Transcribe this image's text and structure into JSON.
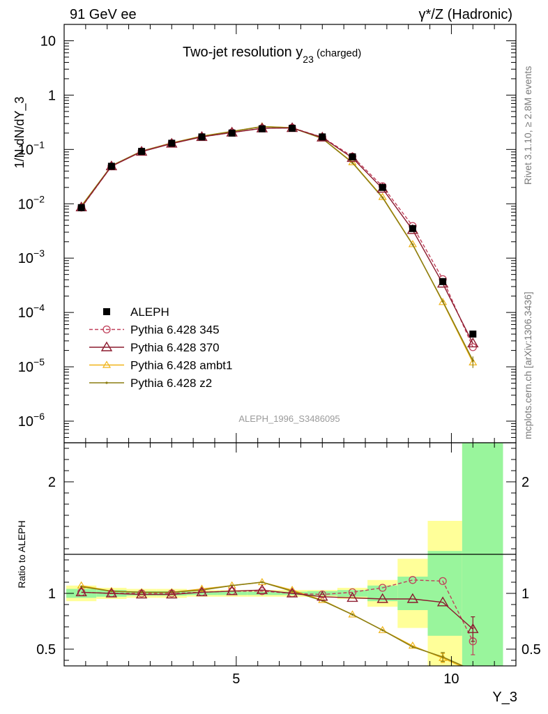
{
  "header": {
    "left": "91 GeV ee",
    "right_prefix": "γ*/Z",
    "right_suffix": " (Hadronic)"
  },
  "side_text": {
    "rivet": "Rivet 3.1.10, ≥ 2.8M events",
    "mcplots": "mcplots.cern.ch [arXiv:1306.3436]"
  },
  "colors": {
    "aleph": "#000000",
    "p345": "#c0405a",
    "p370": "#8b1a2e",
    "ambt1": "#f0b418",
    "z2": "#8c7d10",
    "band_inner": "#99f59c",
    "band_outer": "#ffff99"
  },
  "chart_data": [
    {
      "type": "scatter",
      "title_main": "Two-jet resolution y",
      "title_sub": "23",
      "title_tail": " (charged)",
      "ylabel": "1/N dN/dY_3",
      "yscale": "log",
      "ylim": [
        4e-07,
        20
      ],
      "xlim": [
        1.0,
        11.5
      ],
      "watermark": "ALEPH_1996_S3486095",
      "yticks": [
        {
          "v": 10,
          "label": "10"
        },
        {
          "v": 1,
          "label": "1"
        },
        {
          "v": 0.1,
          "base": "10",
          "exp": "−1"
        },
        {
          "v": 0.01,
          "base": "10",
          "exp": "−2"
        },
        {
          "v": 0.001,
          "base": "10",
          "exp": "−3"
        },
        {
          "v": 0.0001,
          "base": "10",
          "exp": "−4"
        },
        {
          "v": 1e-05,
          "base": "10",
          "exp": "−5"
        },
        {
          "v": 1e-06,
          "base": "10",
          "exp": "−6"
        }
      ],
      "x": [
        1.4,
        2.1,
        2.8,
        3.5,
        4.2,
        4.9,
        5.6,
        6.3,
        7.0,
        7.7,
        8.4,
        9.1,
        9.8,
        10.5
      ],
      "series": [
        {
          "name": "ALEPH",
          "key": "aleph",
          "marker": "square",
          "values": [
            0.0085,
            0.049,
            0.092,
            0.13,
            0.17,
            0.2,
            0.24,
            0.245,
            0.17,
            0.073,
            0.02,
            0.0035,
            0.00037,
            4e-05
          ]
        },
        {
          "name": "Pythia 6.428 345",
          "key": "p345",
          "marker": "circle",
          "dash": true,
          "values": [
            0.0085,
            0.049,
            0.092,
            0.13,
            0.17,
            0.205,
            0.245,
            0.25,
            0.168,
            0.074,
            0.021,
            0.0039,
            0.00041,
            2.3e-05
          ]
        },
        {
          "name": "Pythia 6.428 370",
          "key": "p370",
          "marker": "triangle",
          "values": [
            0.0086,
            0.049,
            0.091,
            0.128,
            0.17,
            0.205,
            0.245,
            0.248,
            0.166,
            0.07,
            0.019,
            0.0033,
            0.00034,
            2.7e-05
          ]
        },
        {
          "name": "Pythia 6.428 ambt1",
          "key": "ambt1",
          "marker": "triangle-small",
          "values": [
            0.0091,
            0.05,
            0.093,
            0.132,
            0.176,
            0.215,
            0.265,
            0.252,
            0.16,
            0.058,
            0.0133,
            0.0018,
            0.000155,
            1.2e-05
          ]
        },
        {
          "name": "Pythia 6.428 z2",
          "key": "z2",
          "marker": "dot",
          "values": [
            0.009,
            0.05,
            0.093,
            0.131,
            0.175,
            0.214,
            0.263,
            0.25,
            0.159,
            0.057,
            0.013,
            0.00177,
            0.00016,
            1.3e-05
          ]
        }
      ]
    },
    {
      "type": "line",
      "ylabel": "Ratio to ALEPH",
      "xlabel": "Y_3",
      "xlim": [
        1.0,
        11.5
      ],
      "ylim": [
        0.35,
        2.35
      ],
      "yticks": [
        0.5,
        1,
        2
      ],
      "xticks": [
        5,
        10
      ],
      "x": [
        1.4,
        2.1,
        2.8,
        3.5,
        4.2,
        4.9,
        5.6,
        6.3,
        7.0,
        7.7,
        8.4,
        9.1,
        9.8,
        10.5
      ],
      "bands": [
        {
          "x0": 1.05,
          "x1": 1.75,
          "inner": [
            0.96,
            1.04
          ],
          "outer": [
            0.93,
            1.07
          ]
        },
        {
          "x0": 1.75,
          "x1": 2.45,
          "inner": [
            0.97,
            1.03
          ],
          "outer": [
            0.95,
            1.05
          ]
        },
        {
          "x0": 2.45,
          "x1": 3.15,
          "inner": [
            0.98,
            1.02
          ],
          "outer": [
            0.96,
            1.04
          ]
        },
        {
          "x0": 3.15,
          "x1": 3.85,
          "inner": [
            0.98,
            1.02
          ],
          "outer": [
            0.96,
            1.04
          ]
        },
        {
          "x0": 3.85,
          "x1": 4.55,
          "inner": [
            0.985,
            1.015
          ],
          "outer": [
            0.97,
            1.03
          ]
        },
        {
          "x0": 4.55,
          "x1": 5.25,
          "inner": [
            0.985,
            1.015
          ],
          "outer": [
            0.97,
            1.03
          ]
        },
        {
          "x0": 5.25,
          "x1": 5.95,
          "inner": [
            0.985,
            1.015
          ],
          "outer": [
            0.97,
            1.03
          ]
        },
        {
          "x0": 5.95,
          "x1": 6.65,
          "inner": [
            0.985,
            1.015
          ],
          "outer": [
            0.97,
            1.03
          ]
        },
        {
          "x0": 6.65,
          "x1": 7.35,
          "inner": [
            0.98,
            1.02
          ],
          "outer": [
            0.97,
            1.03
          ]
        },
        {
          "x0": 7.35,
          "x1": 8.05,
          "inner": [
            0.97,
            1.03
          ],
          "outer": [
            0.95,
            1.05
          ]
        },
        {
          "x0": 8.05,
          "x1": 8.75,
          "inner": [
            0.93,
            1.07
          ],
          "outer": [
            0.88,
            1.12
          ]
        },
        {
          "x0": 8.75,
          "x1": 9.45,
          "inner": [
            0.85,
            1.15
          ],
          "outer": [
            0.69,
            1.31
          ]
        },
        {
          "x0": 9.45,
          "x1": 10.25,
          "inner": [
            0.62,
            1.38
          ],
          "outer": [
            0.35,
            1.65
          ]
        },
        {
          "x0": 10.25,
          "x1": 11.2,
          "inner": [
            0.35,
            2.35
          ],
          "outer": [
            0.35,
            2.35
          ]
        }
      ],
      "series": [
        {
          "name": "Pythia 6.428 345",
          "key": "p345",
          "marker": "circle",
          "dash": true,
          "values": [
            1.01,
            1.0,
            1.0,
            1.0,
            1.01,
            1.02,
            1.02,
            1.0,
            0.99,
            1.01,
            1.05,
            1.12,
            1.11,
            0.57
          ],
          "err": [
            0,
            0,
            0,
            0,
            0,
            0,
            0,
            0,
            0,
            0,
            0,
            0,
            0,
            0.12
          ]
        },
        {
          "name": "Pythia 6.428 370",
          "key": "p370",
          "marker": "triangle",
          "values": [
            1.01,
            1.0,
            0.99,
            0.99,
            1.01,
            1.02,
            1.03,
            1.0,
            0.97,
            0.96,
            0.95,
            0.95,
            0.92,
            0.68
          ],
          "err": [
            0,
            0,
            0,
            0,
            0,
            0,
            0,
            0,
            0,
            0,
            0,
            0,
            0,
            0.11
          ]
        },
        {
          "name": "Pythia 6.428 ambt1",
          "key": "ambt1",
          "marker": "triangle-small",
          "values": [
            1.07,
            1.02,
            1.01,
            1.01,
            1.04,
            1.07,
            1.1,
            1.03,
            0.94,
            0.81,
            0.67,
            0.53,
            0.42,
            0.3
          ],
          "err": [
            0,
            0,
            0,
            0,
            0,
            0,
            0,
            0,
            0,
            0,
            0,
            0,
            0.04,
            0
          ]
        },
        {
          "name": "Pythia 6.428 z2",
          "key": "z2",
          "marker": "dot",
          "values": [
            1.06,
            1.02,
            1.01,
            1.01,
            1.03,
            1.07,
            1.1,
            1.02,
            0.935,
            0.81,
            0.67,
            0.52,
            0.43,
            0.31
          ],
          "err": [
            0,
            0,
            0,
            0,
            0,
            0,
            0,
            0,
            0,
            0,
            0,
            0,
            0.04,
            0
          ]
        }
      ]
    }
  ]
}
